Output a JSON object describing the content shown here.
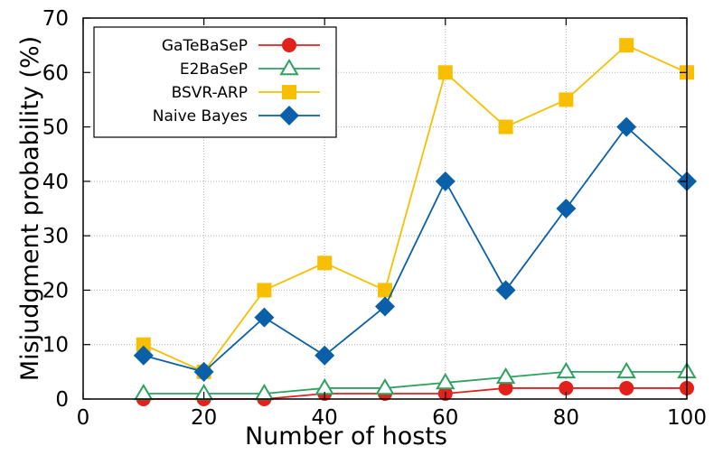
{
  "chart_data": {
    "type": "line",
    "xlabel": "Number of hosts",
    "ylabel": "Misjudgment probability (%)",
    "xlim": [
      0,
      100
    ],
    "ylim": [
      0,
      70
    ],
    "xticks": [
      "0",
      "20",
      "40",
      "60",
      "80",
      "100"
    ],
    "yticks": [
      "0",
      "10",
      "20",
      "30",
      "40",
      "50",
      "60",
      "70"
    ],
    "grid": true,
    "legend_position": "top-left",
    "x": [
      10,
      20,
      30,
      40,
      50,
      60,
      70,
      80,
      90,
      100
    ],
    "series": [
      {
        "name": "GaTeBaSeP",
        "color": "#e3211c",
        "marker": "circle",
        "values": [
          0,
          0,
          0,
          1,
          1,
          1,
          2,
          2,
          2,
          2
        ]
      },
      {
        "name": "E2BaSeP",
        "color": "#2ca25f",
        "marker": "triangle-open",
        "values": [
          1,
          1,
          1,
          2,
          2,
          3,
          4,
          5,
          5,
          5
        ]
      },
      {
        "name": "BSVR-ARP",
        "color": "#f7bf00",
        "marker": "square",
        "values": [
          10,
          5,
          20,
          25,
          20,
          60,
          50,
          55,
          65,
          60
        ]
      },
      {
        "name": "Naive Bayes",
        "color": "#0a60a8",
        "marker": "diamond",
        "values": [
          8,
          5,
          15,
          8,
          17,
          40,
          20,
          35,
          50,
          40
        ]
      }
    ]
  }
}
